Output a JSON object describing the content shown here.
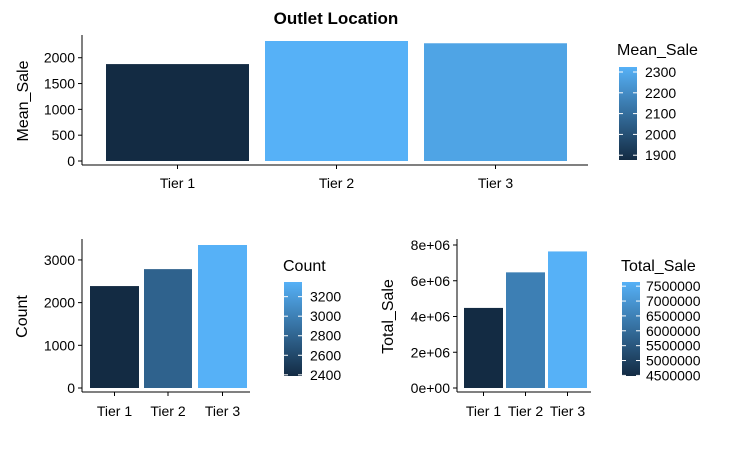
{
  "colors": {
    "low": "#132B43",
    "high": "#56B1F7"
  },
  "chart_data": [
    {
      "type": "bar",
      "title": "Outlet Location",
      "categories": [
        "Tier 1",
        "Tier 2",
        "Tier 3"
      ],
      "values": [
        1877,
        2324,
        2280
      ],
      "xlabel": "",
      "ylabel": "Mean_Sale",
      "ylim": [
        0,
        2324
      ],
      "yticks": [
        0,
        500,
        1000,
        1500,
        2000
      ],
      "ytick_labels": [
        "0",
        "500",
        "1000",
        "1500",
        "2000"
      ],
      "legend": {
        "title": "Mean_Sale",
        "placement": "right",
        "range": [
          1877,
          2324
        ],
        "ticks": [
          1900,
          2000,
          2100,
          2200,
          2300
        ],
        "tick_labels": [
          "1900",
          "2000",
          "2100",
          "2200",
          "2300"
        ]
      }
    },
    {
      "type": "bar",
      "title": "",
      "categories": [
        "Tier 1",
        "Tier 2",
        "Tier 3"
      ],
      "values": [
        2388,
        2785,
        3350
      ],
      "xlabel": "",
      "ylabel": "Count",
      "ylim": [
        0,
        3350
      ],
      "yticks": [
        0,
        1000,
        2000,
        3000
      ],
      "ytick_labels": [
        "0",
        "1000",
        "2000",
        "3000"
      ],
      "legend": {
        "title": "Count",
        "placement": "right",
        "range": [
          2388,
          3350
        ],
        "ticks": [
          2400,
          2600,
          2800,
          3000,
          3200
        ],
        "tick_labels": [
          "2400",
          "2600",
          "2800",
          "3000",
          "3200"
        ]
      }
    },
    {
      "type": "bar",
      "title": "",
      "categories": [
        "Tier 1",
        "Tier 2",
        "Tier 3"
      ],
      "values": [
        4480000,
        6470000,
        7640000
      ],
      "xlabel": "",
      "ylabel": "Total_Sale",
      "ylim": [
        0,
        8000000
      ],
      "yticks": [
        0,
        2000000,
        4000000,
        6000000,
        8000000
      ],
      "ytick_labels": [
        "0e+00",
        "2e+06",
        "4e+06",
        "6e+06",
        "8e+06"
      ],
      "legend": {
        "title": "Total_Sale",
        "placement": "right",
        "range": [
          4480000,
          7640000
        ],
        "ticks": [
          4500000,
          5000000,
          5500000,
          6000000,
          6500000,
          7000000,
          7500000
        ],
        "tick_labels": [
          "4500000",
          "5000000",
          "5500000",
          "6000000",
          "6500000",
          "7000000",
          "7500000"
        ]
      }
    }
  ]
}
